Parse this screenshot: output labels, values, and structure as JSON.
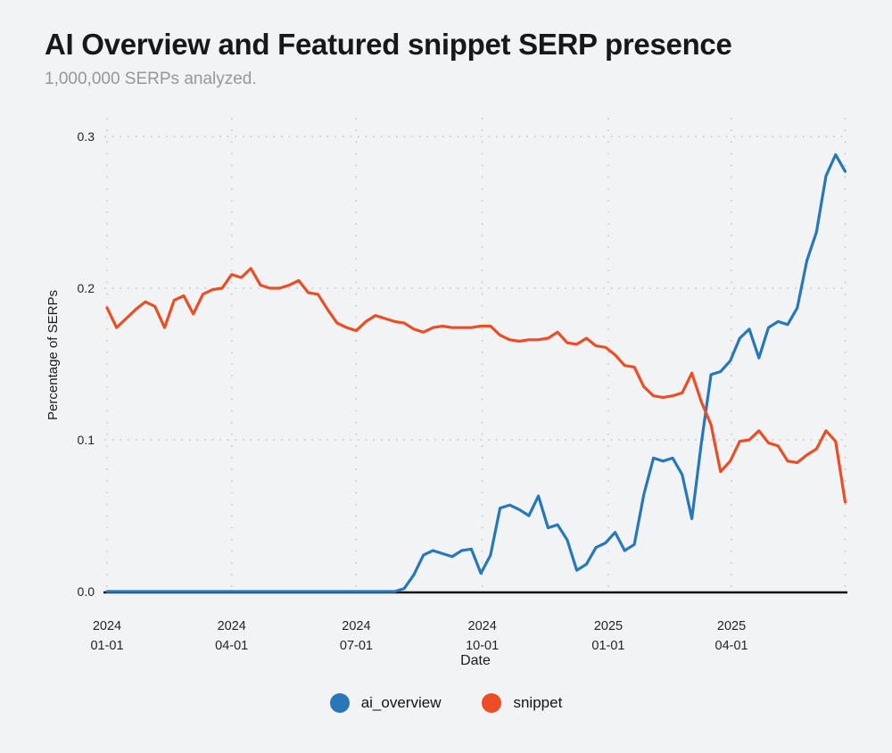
{
  "header": {
    "title": "AI Overview and Featured snippet SERP presence",
    "subtitle": "1,000,000 SERPs analyzed."
  },
  "chart_data": {
    "type": "line",
    "title": "AI Overview and Featured snippet SERP presence",
    "subtitle": "1,000,000 SERPs analyzed.",
    "xlabel": "Date",
    "ylabel": "Percentage of SERPs",
    "ylim": [
      0.0,
      0.3
    ],
    "yticks": [
      0.0,
      0.1,
      0.2,
      0.3
    ],
    "grid": "dotted",
    "legend_position": "bottom",
    "x": [
      "2024-01-01",
      "2024-01-08",
      "2024-01-15",
      "2024-01-22",
      "2024-01-29",
      "2024-02-05",
      "2024-02-12",
      "2024-02-19",
      "2024-02-26",
      "2024-03-04",
      "2024-03-11",
      "2024-03-18",
      "2024-03-25",
      "2024-04-01",
      "2024-04-08",
      "2024-04-15",
      "2024-04-22",
      "2024-04-29",
      "2024-05-06",
      "2024-05-13",
      "2024-05-20",
      "2024-05-27",
      "2024-06-03",
      "2024-06-10",
      "2024-06-17",
      "2024-06-24",
      "2024-07-01",
      "2024-07-08",
      "2024-07-15",
      "2024-07-22",
      "2024-07-29",
      "2024-08-05",
      "2024-08-12",
      "2024-08-19",
      "2024-08-26",
      "2024-09-02",
      "2024-09-09",
      "2024-09-16",
      "2024-09-23",
      "2024-09-30",
      "2024-10-07",
      "2024-10-14",
      "2024-10-21",
      "2024-10-28",
      "2024-11-04",
      "2024-11-11",
      "2024-11-18",
      "2024-11-25",
      "2024-12-02",
      "2024-12-09",
      "2024-12-16",
      "2024-12-23",
      "2024-12-30",
      "2025-01-06",
      "2025-01-13",
      "2025-01-20",
      "2025-01-27",
      "2025-02-03",
      "2025-02-10",
      "2025-02-17",
      "2025-02-24",
      "2025-03-03",
      "2025-03-10",
      "2025-03-17",
      "2025-03-24",
      "2025-03-31",
      "2025-04-07",
      "2025-04-14",
      "2025-04-21",
      "2025-04-28",
      "2025-05-05",
      "2025-05-12",
      "2025-05-19",
      "2025-05-26",
      "2025-06-02",
      "2025-06-09",
      "2025-06-16",
      "2025-06-23"
    ],
    "xticks": [
      {
        "pos": 0,
        "year": "2024",
        "md": "01-01"
      },
      {
        "pos": 13,
        "year": "2024",
        "md": "04-01"
      },
      {
        "pos": 26,
        "year": "2024",
        "md": "07-01"
      },
      {
        "pos": 39.14,
        "year": "2024",
        "md": "10-01"
      },
      {
        "pos": 52.29,
        "year": "2025",
        "md": "01-01"
      },
      {
        "pos": 65.14,
        "year": "2025",
        "md": "04-01"
      },
      {
        "pos": 77,
        "year": "",
        "md": ""
      }
    ],
    "series": [
      {
        "name": "ai_overview",
        "color": "#2878b9",
        "values": [
          0,
          0,
          0,
          0,
          0,
          0,
          0,
          0,
          0,
          0,
          0,
          0,
          0,
          0,
          0,
          0,
          0,
          0,
          0,
          0,
          0,
          0,
          0,
          0,
          0,
          0,
          0,
          0,
          0,
          0,
          0,
          0.002,
          0.011,
          0.024,
          0.027,
          0.025,
          0.023,
          0.027,
          0.028,
          0.012,
          0.024,
          0.055,
          0.057,
          0.054,
          0.05,
          0.063,
          0.042,
          0.044,
          0.034,
          0.014,
          0.018,
          0.029,
          0.032,
          0.039,
          0.027,
          0.031,
          0.064,
          0.088,
          0.086,
          0.088,
          0.077,
          0.048,
          0.098,
          0.143,
          0.145,
          0.152,
          0.167,
          0.173,
          0.154,
          0.174,
          0.178,
          0.176,
          0.187,
          0.218,
          0.237,
          0.274,
          0.288,
          0.277
        ]
      },
      {
        "name": "snippet",
        "color": "#eb4e24",
        "values": [
          0.187,
          0.174,
          0.18,
          0.186,
          0.191,
          0.188,
          0.174,
          0.192,
          0.195,
          0.183,
          0.196,
          0.199,
          0.2,
          0.209,
          0.207,
          0.213,
          0.202,
          0.2,
          0.2,
          0.202,
          0.205,
          0.197,
          0.196,
          0.186,
          0.177,
          0.174,
          0.172,
          0.178,
          0.182,
          0.18,
          0.178,
          0.177,
          0.173,
          0.171,
          0.174,
          0.175,
          0.174,
          0.174,
          0.174,
          0.175,
          0.175,
          0.169,
          0.166,
          0.165,
          0.166,
          0.166,
          0.167,
          0.171,
          0.164,
          0.163,
          0.167,
          0.162,
          0.161,
          0.156,
          0.149,
          0.148,
          0.135,
          0.129,
          0.128,
          0.129,
          0.131,
          0.144,
          0.125,
          0.11,
          0.079,
          0.086,
          0.099,
          0.1,
          0.106,
          0.098,
          0.096,
          0.086,
          0.085,
          0.09,
          0.094,
          0.106,
          0.099,
          0.059
        ]
      }
    ]
  },
  "legend": {
    "items": [
      {
        "label": "ai_overview",
        "color": "#2878b9"
      },
      {
        "label": "snippet",
        "color": "#eb4e24"
      }
    ]
  },
  "colors": {
    "background": "#f2f3f5",
    "grid": "#c0c1c5",
    "axis": "#111217",
    "title_text": "#17181a",
    "subtitle_text": "#96979b"
  }
}
